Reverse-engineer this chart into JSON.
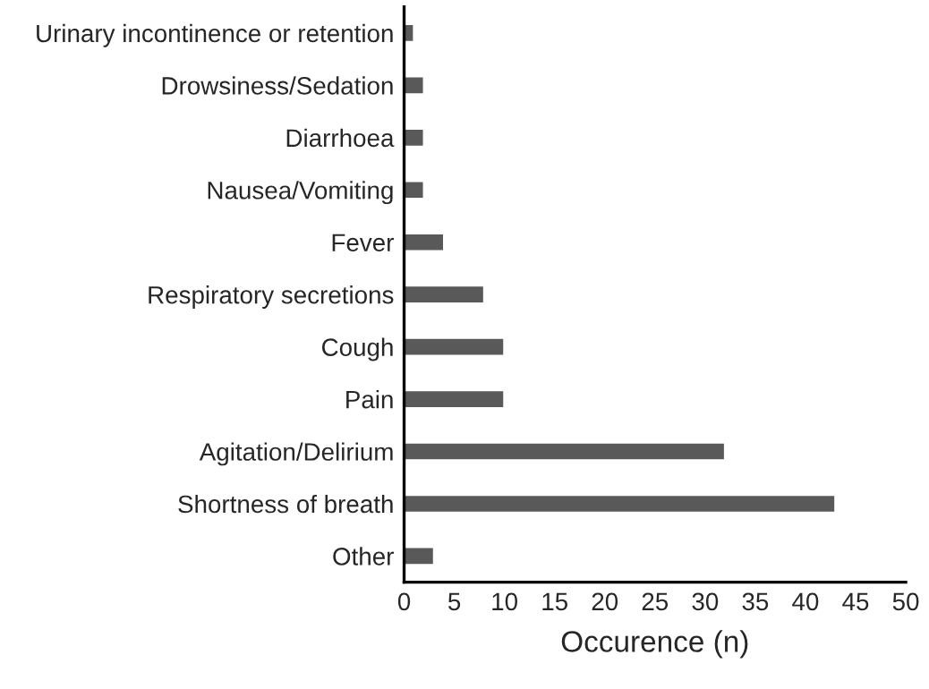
{
  "chart_data": {
    "type": "bar",
    "orientation": "horizontal",
    "xlabel": "Occurence (n)",
    "categories": [
      "Urinary incontinence or retention",
      "Drowsiness/Sedation",
      "Diarrhoea",
      "Nausea/Vomiting",
      "Fever",
      "Respiratory secretions",
      "Cough",
      "Pain",
      "Agitation/Delirium",
      "Shortness of breath",
      "Other"
    ],
    "values": [
      1,
      2,
      2,
      2,
      4,
      8,
      10,
      10,
      32,
      43,
      3
    ],
    "color": "#595959",
    "xlim": [
      0,
      50
    ],
    "xticks": [
      0,
      5,
      10,
      15,
      20,
      25,
      30,
      35,
      40,
      45,
      50
    ],
    "grid": false
  }
}
